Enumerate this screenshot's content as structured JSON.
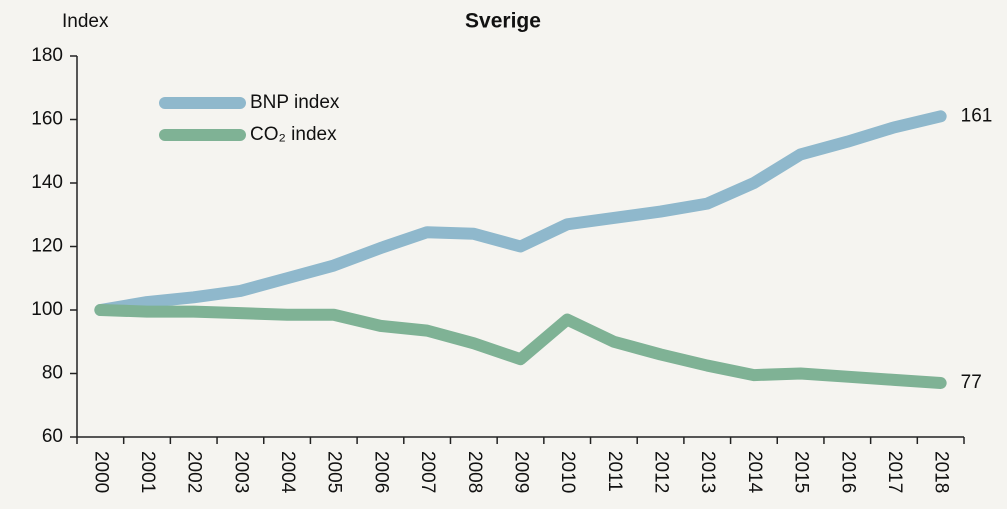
{
  "chart_data": {
    "type": "line",
    "title": "Sverige",
    "y_label": "Index",
    "categories": [
      "2000",
      "2001",
      "2002",
      "2003",
      "2004",
      "2005",
      "2006",
      "2007",
      "2008",
      "2009",
      "2010",
      "2011",
      "2012",
      "2013",
      "2014",
      "2015",
      "2016",
      "2017",
      "2018"
    ],
    "series": [
      {
        "name": "BNP index",
        "color": "#8fb8cc",
        "values": [
          100,
          102.5,
          104,
          106,
          110,
          114,
          119.5,
          124.5,
          124,
          120,
          127,
          129,
          131,
          133.5,
          140,
          149,
          153,
          157.5,
          161
        ]
      },
      {
        "name": "CO₂ index",
        "color": "#7fb295",
        "values": [
          100,
          99.5,
          99.5,
          99,
          98.5,
          98.5,
          95,
          93.5,
          89.5,
          84.5,
          97,
          90,
          86,
          82.5,
          79.5,
          80,
          79,
          78,
          77
        ]
      }
    ],
    "ylim": [
      60,
      180
    ],
    "yticks": [
      60,
      80,
      100,
      120,
      140,
      160,
      180
    ],
    "grid": false
  }
}
